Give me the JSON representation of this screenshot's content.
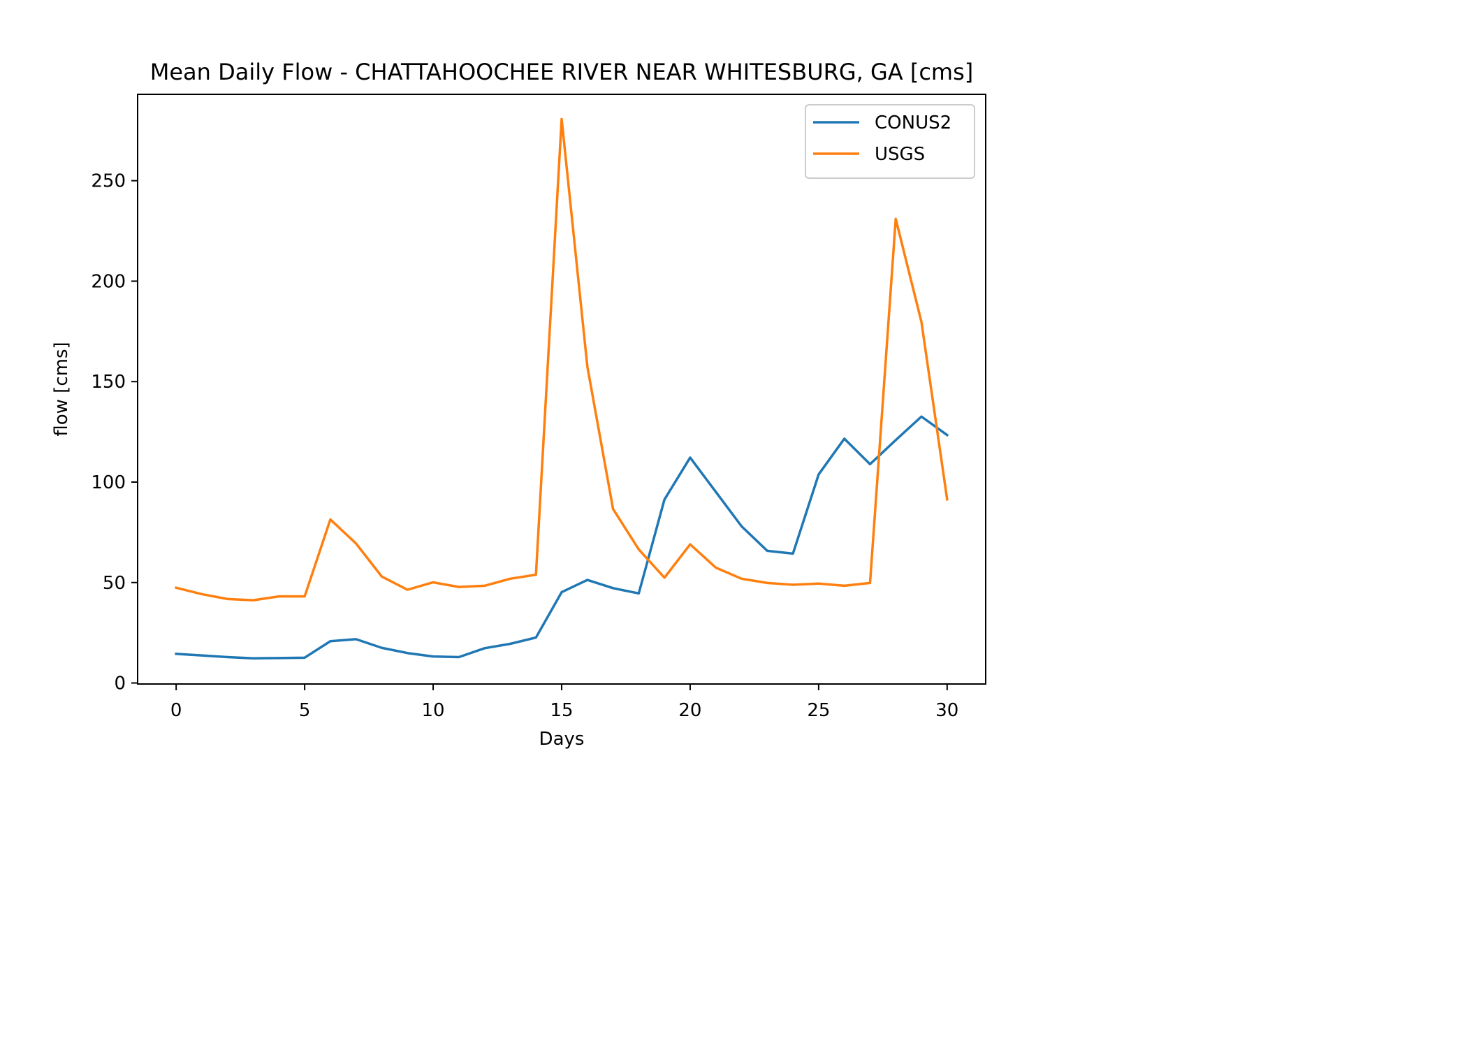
{
  "chart_data": {
    "type": "line",
    "title": "Mean Daily Flow - CHATTAHOOCHEE RIVER NEAR WHITESBURG, GA [cms]",
    "xlabel": "Days",
    "ylabel": "flow [cms]",
    "xlim": [
      -1.5,
      31.5
    ],
    "ylim": [
      -0.5,
      293
    ],
    "xticks": [
      0,
      5,
      10,
      15,
      20,
      25,
      30
    ],
    "yticks": [
      0,
      50,
      100,
      150,
      200,
      250
    ],
    "grid": false,
    "legend_position": "top-right",
    "x": [
      0,
      1,
      2,
      3,
      4,
      5,
      6,
      7,
      8,
      9,
      10,
      11,
      12,
      13,
      14,
      15,
      16,
      17,
      18,
      19,
      20,
      21,
      22,
      23,
      24,
      25,
      26,
      27,
      28,
      29,
      30
    ],
    "series": [
      {
        "name": "CONUS2",
        "color": "#1f77b4",
        "values": [
          14.5,
          13.7,
          12.9,
          12.3,
          12.4,
          12.6,
          20.8,
          21.8,
          17.5,
          14.9,
          13.2,
          12.9,
          17.3,
          19.5,
          22.6,
          45.2,
          51.3,
          47.2,
          44.6,
          91.3,
          112.2,
          95.1,
          78.0,
          65.8,
          64.4,
          103.8,
          121.6,
          108.9,
          120.9,
          132.6,
          123.4
        ]
      },
      {
        "name": "USGS",
        "color": "#ff7f0e",
        "values": [
          47.4,
          44.2,
          41.8,
          41.2,
          43.1,
          43.1,
          81.4,
          69.4,
          53.0,
          46.4,
          50.1,
          47.8,
          48.4,
          51.9,
          53.9,
          280.7,
          157.5,
          86.6,
          66.5,
          52.4,
          69.0,
          57.4,
          51.9,
          49.8,
          48.9,
          49.5,
          48.4,
          49.8,
          231.0,
          179.7,
          91.4
        ]
      }
    ]
  }
}
